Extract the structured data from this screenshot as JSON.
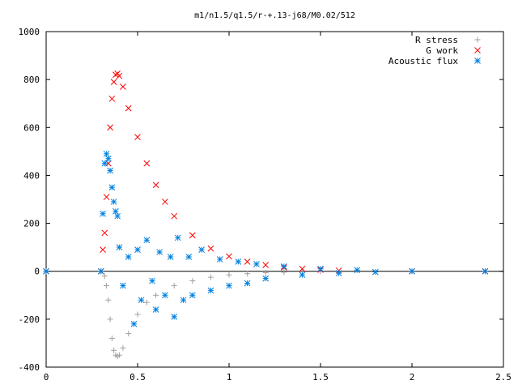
{
  "chart_data": {
    "type": "scatter",
    "title": "m1/n1.5/q1.5/r-+.13-j68/M0.02/512",
    "xlabel": "",
    "ylabel": "",
    "xlim": [
      0,
      2.5
    ],
    "ylim": [
      -400,
      1000
    ],
    "x_ticks": [
      0,
      0.5,
      1,
      1.5,
      2,
      2.5
    ],
    "x_tick_labels": [
      "0",
      "0.5",
      "1",
      "1.5",
      "2",
      "2.5"
    ],
    "y_ticks": [
      -400,
      -200,
      0,
      200,
      400,
      600,
      800,
      1000
    ],
    "y_tick_labels": [
      "-400",
      "-200",
      "0",
      "200",
      "400",
      "600",
      "800",
      "1000"
    ],
    "grid": false,
    "legend_position": "top-right",
    "series": [
      {
        "name": "R stress",
        "marker": "plus",
        "color": "#a0a0a0",
        "x": [
          0.0,
          0.3,
          0.32,
          0.33,
          0.34,
          0.35,
          0.36,
          0.37,
          0.38,
          0.39,
          0.4,
          0.42,
          0.45,
          0.5,
          0.55,
          0.6,
          0.7,
          0.8,
          0.9,
          1.0,
          1.1,
          1.2,
          1.3,
          1.4,
          1.5,
          2.0,
          2.4
        ],
        "y": [
          0,
          0,
          -20,
          -60,
          -120,
          -200,
          -280,
          -330,
          -350,
          -355,
          -350,
          -320,
          -260,
          -180,
          -130,
          -100,
          -60,
          -40,
          -25,
          -15,
          -10,
          -6,
          -4,
          -2,
          -1,
          0,
          0
        ]
      },
      {
        "name": "G work",
        "marker": "cross",
        "color": "#ff0000",
        "x": [
          0.0,
          0.3,
          0.31,
          0.32,
          0.33,
          0.34,
          0.35,
          0.36,
          0.37,
          0.38,
          0.39,
          0.4,
          0.42,
          0.45,
          0.5,
          0.55,
          0.6,
          0.65,
          0.7,
          0.8,
          0.9,
          1.0,
          1.1,
          1.2,
          1.3,
          1.4,
          1.5,
          1.6,
          2.0,
          2.4
        ],
        "y": [
          0,
          0,
          90,
          160,
          310,
          450,
          600,
          720,
          790,
          820,
          825,
          815,
          770,
          680,
          560,
          450,
          360,
          290,
          230,
          150,
          95,
          62,
          40,
          26,
          16,
          10,
          6,
          3,
          0,
          0
        ]
      },
      {
        "name": "Acoustic flux",
        "marker": "star",
        "color": "#0080e0",
        "x": [
          0.0,
          0.3,
          0.31,
          0.32,
          0.33,
          0.34,
          0.35,
          0.36,
          0.37,
          0.38,
          0.39,
          0.4,
          0.42,
          0.45,
          0.48,
          0.5,
          0.52,
          0.55,
          0.58,
          0.6,
          0.62,
          0.65,
          0.68,
          0.7,
          0.72,
          0.75,
          0.78,
          0.8,
          0.85,
          0.9,
          0.95,
          1.0,
          1.05,
          1.1,
          1.15,
          1.2,
          1.3,
          1.4,
          1.5,
          1.6,
          1.7,
          1.8,
          2.0,
          2.4
        ],
        "y": [
          0,
          0,
          240,
          450,
          490,
          470,
          420,
          350,
          290,
          250,
          230,
          100,
          -60,
          60,
          -220,
          90,
          -120,
          130,
          -40,
          -160,
          80,
          -100,
          60,
          -190,
          140,
          -120,
          60,
          -100,
          90,
          -80,
          50,
          -60,
          40,
          -50,
          30,
          -30,
          20,
          -15,
          10,
          -8,
          5,
          -3,
          0,
          0
        ]
      }
    ]
  }
}
